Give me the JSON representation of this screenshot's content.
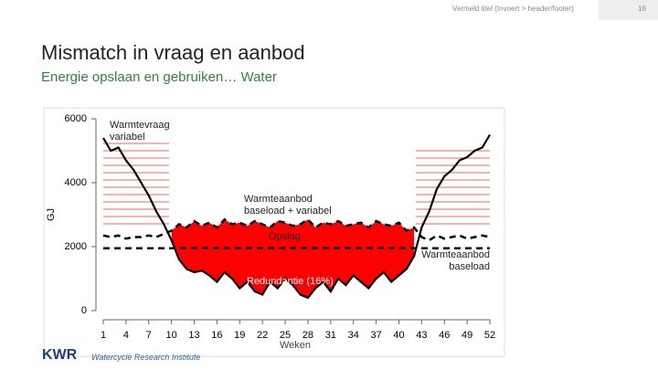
{
  "header": {
    "note": "Vermeld titel (Invoert > header/footer)",
    "page_number": "16"
  },
  "slide": {
    "title": "Mismatch in vraag en aanbod",
    "subtitle": "Energie opslaan en gebruiken… Water"
  },
  "footer": {
    "logo": "KWR",
    "institute": "Watercycle Research Institute"
  },
  "chart_data": {
    "type": "line",
    "x_label": "Weken",
    "y_label": "GJ",
    "x": [
      1,
      2,
      3,
      4,
      5,
      6,
      7,
      8,
      9,
      10,
      11,
      12,
      13,
      14,
      15,
      16,
      17,
      18,
      19,
      20,
      21,
      22,
      23,
      24,
      25,
      26,
      27,
      28,
      29,
      30,
      31,
      32,
      33,
      34,
      35,
      36,
      37,
      38,
      39,
      40,
      41,
      42,
      43,
      44,
      45,
      46,
      47,
      48,
      49,
      50,
      51,
      52
    ],
    "xlim": [
      1,
      52
    ],
    "xticks": [
      1,
      4,
      7,
      10,
      13,
      16,
      19,
      22,
      25,
      28,
      31,
      34,
      37,
      40,
      43,
      46,
      49,
      52
    ],
    "ylim": [
      0,
      6000
    ],
    "yticks": [
      0,
      2000,
      4000,
      6000
    ],
    "fill_color": "#ff0000",
    "series": [
      {
        "name": "Warmtevraag variabel",
        "color": "#000000",
        "dashed": false,
        "values": [
          5400,
          5000,
          5100,
          4700,
          4400,
          4000,
          3600,
          3100,
          2700,
          2200,
          1600,
          1300,
          1200,
          1250,
          1100,
          900,
          1200,
          1000,
          700,
          900,
          600,
          500,
          900,
          700,
          1000,
          800,
          500,
          400,
          700,
          900,
          600,
          1000,
          800,
          1100,
          900,
          700,
          1000,
          1200,
          900,
          1100,
          1300,
          1700,
          2600,
          3100,
          3800,
          4200,
          4400,
          4700,
          4800,
          5000,
          5100,
          5500
        ]
      },
      {
        "name": "Warmteaanbod baseload + variabel",
        "color": "#000000",
        "dashed": true,
        "values": [
          2350,
          2300,
          2350,
          2250,
          2300,
          2300,
          2350,
          2300,
          2400,
          2500,
          2700,
          2600,
          2800,
          2650,
          2750,
          2600,
          2850,
          2700,
          2750,
          2650,
          2800,
          2700,
          2600,
          2800,
          2750,
          2650,
          2700,
          2850,
          2600,
          2750,
          2700,
          2800,
          2650,
          2700,
          2750,
          2600,
          2800,
          2700,
          2650,
          2750,
          2500,
          2600,
          2300,
          2200,
          2350,
          2250,
          2300,
          2350,
          2250,
          2300,
          2350,
          2300
        ]
      },
      {
        "name": "Warmteaanbod baseload",
        "color": "#000000",
        "dashed": true,
        "values": [
          1950,
          1950,
          1950,
          1950,
          1950,
          1950,
          1950,
          1950,
          1950,
          1950,
          1950,
          1950,
          1950,
          1950,
          1950,
          1950,
          1950,
          1950,
          1950,
          1950,
          1950,
          1950,
          1950,
          1950,
          1950,
          1950,
          1950,
          1950,
          1950,
          1950,
          1950,
          1950,
          1950,
          1950,
          1950,
          1950,
          1950,
          1950,
          1950,
          1950,
          1950,
          1950,
          1950,
          1950,
          1950,
          1950,
          1950,
          1950,
          1950,
          1950,
          1950,
          1950
        ]
      }
    ],
    "annotations": [
      "Opslag",
      "Redundantie (16%)"
    ]
  }
}
